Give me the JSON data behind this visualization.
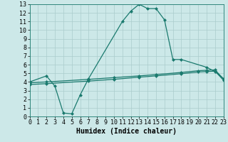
{
  "title": "",
  "xlabel": "Humidex (Indice chaleur)",
  "ylabel": "",
  "bg_color": "#cce8e8",
  "line_color": "#1a7a6e",
  "grid_color": "#aacccc",
  "xlim": [
    0,
    23
  ],
  "ylim": [
    0,
    13
  ],
  "xticks": [
    0,
    1,
    2,
    3,
    4,
    5,
    6,
    7,
    8,
    9,
    10,
    11,
    12,
    13,
    14,
    15,
    16,
    17,
    18,
    19,
    20,
    21,
    22,
    23
  ],
  "yticks": [
    0,
    1,
    2,
    3,
    4,
    5,
    6,
    7,
    8,
    9,
    10,
    11,
    12,
    13
  ],
  "line1_x": [
    0,
    2,
    3,
    4,
    5,
    6,
    7,
    11,
    12,
    13,
    14,
    15,
    16,
    17,
    18,
    21,
    22,
    23
  ],
  "line1_y": [
    4.0,
    4.7,
    3.5,
    0.4,
    0.3,
    2.5,
    4.4,
    11.0,
    12.2,
    13.0,
    12.5,
    12.5,
    11.2,
    6.6,
    6.6,
    5.7,
    5.2,
    4.4
  ],
  "line2_x": [
    0,
    2,
    7,
    10,
    13,
    15,
    18,
    20,
    21,
    22,
    23
  ],
  "line2_y": [
    3.9,
    4.0,
    4.3,
    4.5,
    4.7,
    4.85,
    5.1,
    5.3,
    5.35,
    5.4,
    4.35
  ],
  "line3_x": [
    0,
    2,
    7,
    10,
    13,
    15,
    18,
    20,
    21,
    22,
    23
  ],
  "line3_y": [
    3.7,
    3.8,
    4.1,
    4.3,
    4.55,
    4.7,
    4.95,
    5.15,
    5.2,
    5.25,
    4.2
  ],
  "marker": "D",
  "markersize": 2,
  "linewidth": 0.9,
  "xlabel_fontsize": 7,
  "tick_fontsize": 6
}
